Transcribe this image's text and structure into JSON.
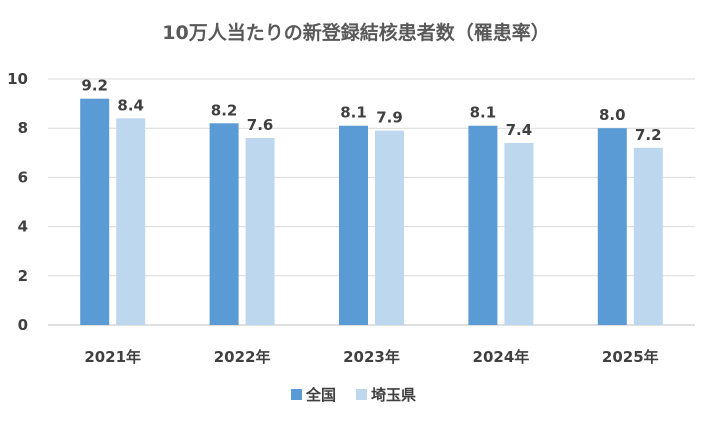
{
  "chart_data": {
    "type": "bar",
    "title": "10万人当たりの新登録結核患者数（罹患率）",
    "xlabel": "",
    "ylabel": "",
    "categories": [
      "2021年",
      "2022年",
      "2023年",
      "2024年",
      "2025年"
    ],
    "series": [
      {
        "name": "全国",
        "color": "#5B9BD5",
        "values": [
          9.2,
          8.2,
          8.1,
          8.1,
          8.0
        ],
        "labels": [
          "9.2",
          "8.2",
          "8.1",
          "8.1",
          "8.0"
        ]
      },
      {
        "name": "埼玉県",
        "color": "#BDD7EE",
        "values": [
          8.4,
          7.6,
          7.9,
          7.4,
          7.2
        ],
        "labels": [
          "8.4",
          "7.6",
          "7.9",
          "7.4",
          "7.2"
        ]
      }
    ],
    "ylim": [
      0,
      10
    ],
    "yticks": [
      "0",
      "2",
      "4",
      "6",
      "8",
      "10"
    ],
    "grid": true,
    "legend_position": "bottom"
  }
}
